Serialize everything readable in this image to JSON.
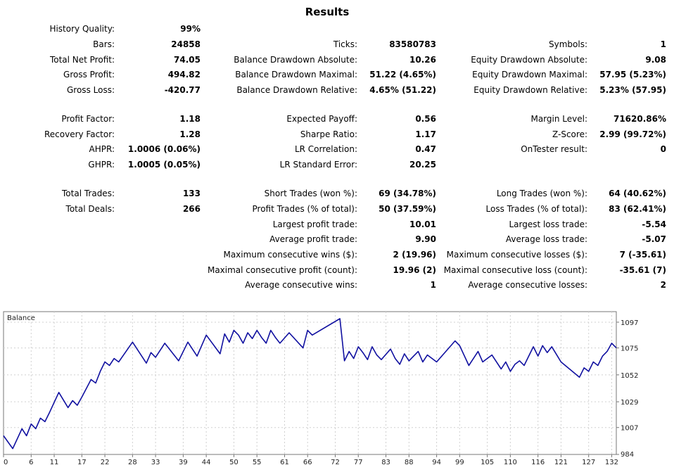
{
  "title": "Results",
  "stats": [
    {
      "label": "History Quality:",
      "value": "99%"
    },
    {
      "label": "Bars:",
      "value": "24858"
    },
    {
      "label": "Ticks:",
      "value": "83580783"
    },
    {
      "label": "Symbols:",
      "value": "1"
    },
    {
      "label": "Total Net Profit:",
      "value": "74.05"
    },
    {
      "label": "Balance Drawdown Absolute:",
      "value": "10.26"
    },
    {
      "label": "Equity Drawdown Absolute:",
      "value": "9.08"
    },
    {
      "label": "Gross Profit:",
      "value": "494.82"
    },
    {
      "label": "Balance Drawdown Maximal:",
      "value": "51.22 (4.65%)"
    },
    {
      "label": "Equity Drawdown Maximal:",
      "value": "57.95 (5.23%)"
    },
    {
      "label": "Gross Loss:",
      "value": "-420.77"
    },
    {
      "label": "Balance Drawdown Relative:",
      "value": "4.65% (51.22)"
    },
    {
      "label": "Equity Drawdown Relative:",
      "value": "5.23% (57.95)"
    },
    {
      "label": "Profit Factor:",
      "value": "1.18"
    },
    {
      "label": "Expected Payoff:",
      "value": "0.56"
    },
    {
      "label": "Margin Level:",
      "value": "71620.86%"
    },
    {
      "label": "Recovery Factor:",
      "value": "1.28"
    },
    {
      "label": "Sharpe Ratio:",
      "value": "1.17"
    },
    {
      "label": "Z-Score:",
      "value": "2.99 (99.72%)"
    },
    {
      "label": "AHPR:",
      "value": "1.0006 (0.06%)"
    },
    {
      "label": "LR Correlation:",
      "value": "0.47"
    },
    {
      "label": "OnTester result:",
      "value": "0"
    },
    {
      "label": "GHPR:",
      "value": "1.0005 (0.05%)"
    },
    {
      "label": "LR Standard Error:",
      "value": "20.25"
    },
    {
      "label": "Total Trades:",
      "value": "133"
    },
    {
      "label": "Short Trades (won %):",
      "value": "69 (34.78%)"
    },
    {
      "label": "Long Trades (won %):",
      "value": "64 (40.62%)"
    },
    {
      "label": "Total Deals:",
      "value": "266"
    },
    {
      "label": "Profit Trades (% of total):",
      "value": "50 (37.59%)"
    },
    {
      "label": "Loss Trades (% of total):",
      "value": "83 (62.41%)"
    },
    {
      "label": "Largest profit trade:",
      "value": "10.01"
    },
    {
      "label": "Largest loss trade:",
      "value": "-5.54"
    },
    {
      "label": "Average profit trade:",
      "value": "9.90"
    },
    {
      "label": "Average loss trade:",
      "value": "-5.07"
    },
    {
      "label": "Maximum consecutive wins ($):",
      "value": "2 (19.96)"
    },
    {
      "label": "Maximum consecutive losses ($):",
      "value": "7 (-35.61)"
    },
    {
      "label": "Maximal consecutive profit (count):",
      "value": "19.96 (2)"
    },
    {
      "label": "Maximal consecutive loss (count):",
      "value": "-35.61 (7)"
    },
    {
      "label": "Average consecutive wins:",
      "value": "1"
    },
    {
      "label": "Average consecutive losses:",
      "value": "2"
    }
  ],
  "chart_data": {
    "type": "line",
    "title": "Balance",
    "line_color": "#1010a0",
    "grid": true,
    "xlim": [
      0,
      133
    ],
    "ylim": [
      984,
      1106
    ],
    "x_ticks": [
      0,
      6,
      11,
      17,
      22,
      28,
      33,
      39,
      44,
      50,
      55,
      61,
      66,
      72,
      77,
      83,
      88,
      94,
      99,
      105,
      110,
      116,
      121,
      127,
      132
    ],
    "y_ticks": [
      984,
      1007,
      1029,
      1052,
      1075,
      1097
    ],
    "series": [
      {
        "x": [
          0,
          2,
          4,
          5,
          6,
          7,
          8,
          9,
          10,
          12,
          14,
          15,
          16,
          17,
          19,
          20,
          21,
          22,
          23,
          24,
          25,
          28,
          31,
          32,
          33,
          35,
          36,
          38,
          40,
          42,
          44,
          47,
          48,
          49,
          50,
          51,
          52,
          53,
          54,
          55,
          56,
          57,
          58,
          59,
          60,
          62,
          65,
          66,
          67,
          73,
          74,
          75,
          76,
          77,
          78,
          79,
          80,
          81,
          82,
          84,
          85,
          86,
          87,
          88,
          90,
          91,
          92,
          94,
          98,
          99,
          101,
          103,
          104,
          106,
          108,
          109,
          110,
          111,
          112,
          113,
          115,
          116,
          117,
          118,
          119,
          121,
          125,
          126,
          127,
          128,
          129,
          130,
          131,
          132,
          133
        ],
        "y": [
          1000,
          989,
          1006,
          1000,
          1010,
          1006,
          1015,
          1012,
          1020,
          1037,
          1024,
          1030,
          1026,
          1033,
          1048,
          1045,
          1055,
          1063,
          1060,
          1066,
          1063,
          1080,
          1062,
          1071,
          1067,
          1079,
          1074,
          1064,
          1080,
          1068,
          1086,
          1070,
          1087,
          1080,
          1090,
          1086,
          1079,
          1088,
          1083,
          1090,
          1084,
          1079,
          1090,
          1084,
          1079,
          1088,
          1075,
          1090,
          1086,
          1100,
          1064,
          1072,
          1066,
          1076,
          1071,
          1065,
          1076,
          1069,
          1065,
          1074,
          1066,
          1061,
          1070,
          1064,
          1072,
          1063,
          1069,
          1063,
          1081,
          1077,
          1060,
          1072,
          1063,
          1069,
          1057,
          1063,
          1055,
          1061,
          1064,
          1060,
          1076,
          1068,
          1077,
          1071,
          1076,
          1063,
          1050,
          1058,
          1055,
          1063,
          1060,
          1068,
          1072,
          1079,
          1075
        ]
      }
    ]
  }
}
